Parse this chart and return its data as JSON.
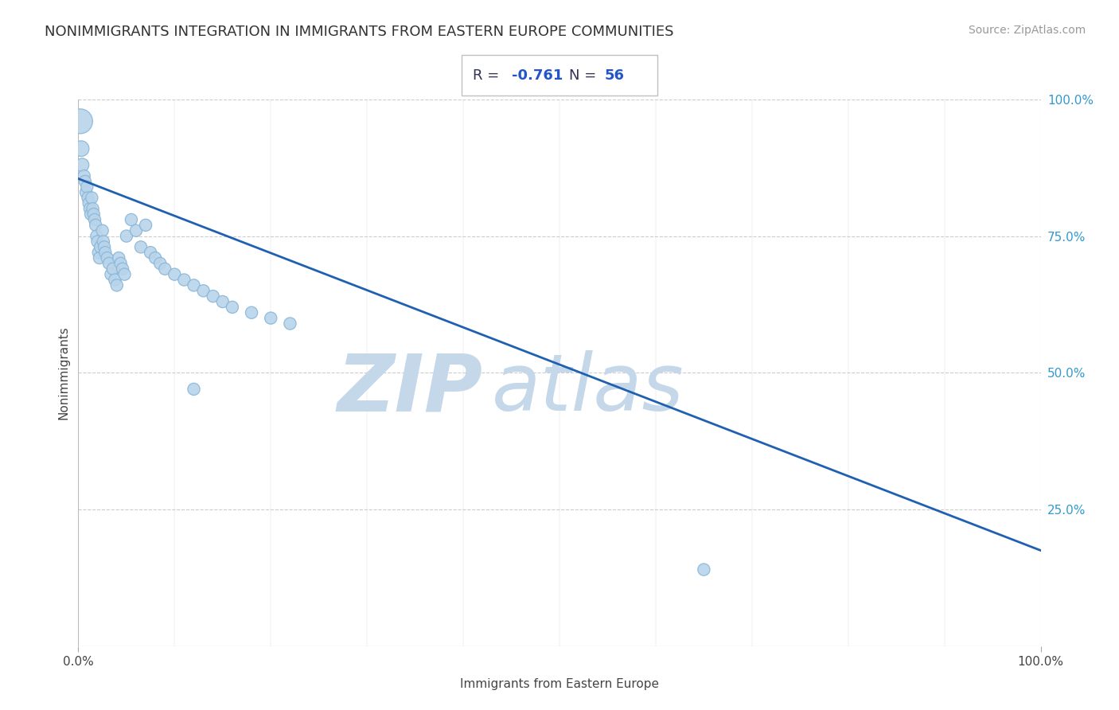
{
  "title": "NONIMMIGRANTS INTEGRATION IN IMMIGRANTS FROM EASTERN EUROPE COMMUNITIES",
  "source": "Source: ZipAtlas.com",
  "xlabel": "Immigrants from Eastern Europe",
  "ylabel": "Nonimmigrants",
  "R": -0.761,
  "N": 56,
  "x_data": [
    0.002,
    0.003,
    0.004,
    0.006,
    0.007,
    0.008,
    0.009,
    0.01,
    0.011,
    0.012,
    0.013,
    0.014,
    0.015,
    0.016,
    0.017,
    0.018,
    0.019,
    0.02,
    0.021,
    0.022,
    0.023,
    0.025,
    0.026,
    0.027,
    0.028,
    0.03,
    0.032,
    0.034,
    0.036,
    0.038,
    0.04,
    0.042,
    0.044,
    0.046,
    0.048,
    0.05,
    0.055,
    0.06,
    0.065,
    0.07,
    0.075,
    0.08,
    0.085,
    0.09,
    0.1,
    0.11,
    0.12,
    0.13,
    0.14,
    0.15,
    0.16,
    0.18,
    0.2,
    0.22,
    0.12,
    0.65
  ],
  "y_data": [
    0.96,
    0.91,
    0.88,
    0.86,
    0.85,
    0.83,
    0.84,
    0.82,
    0.81,
    0.8,
    0.79,
    0.82,
    0.8,
    0.79,
    0.78,
    0.77,
    0.75,
    0.74,
    0.72,
    0.71,
    0.73,
    0.76,
    0.74,
    0.73,
    0.72,
    0.71,
    0.7,
    0.68,
    0.69,
    0.67,
    0.66,
    0.71,
    0.7,
    0.69,
    0.68,
    0.75,
    0.78,
    0.76,
    0.73,
    0.77,
    0.72,
    0.71,
    0.7,
    0.69,
    0.68,
    0.67,
    0.66,
    0.65,
    0.64,
    0.63,
    0.62,
    0.61,
    0.6,
    0.59,
    0.47,
    0.14
  ],
  "sizes": [
    500,
    200,
    150,
    120,
    120,
    120,
    120,
    120,
    120,
    120,
    120,
    120,
    120,
    120,
    120,
    120,
    120,
    120,
    120,
    120,
    120,
    120,
    120,
    120,
    120,
    120,
    120,
    120,
    120,
    120,
    120,
    120,
    120,
    120,
    120,
    120,
    120,
    120,
    120,
    120,
    120,
    120,
    120,
    120,
    120,
    120,
    120,
    120,
    120,
    120,
    120,
    120,
    120,
    120,
    120,
    120
  ],
  "scatter_color": "#b8d4ea",
  "scatter_edge_color": "#89b6d8",
  "line_color": "#2060b0",
  "trend_x": [
    0.0,
    1.0
  ],
  "trend_y_start": 0.855,
  "trend_y_end": 0.175,
  "xlim": [
    0.0,
    1.0
  ],
  "ylim": [
    0.0,
    1.0
  ],
  "yticks_right": [
    0.25,
    0.5,
    0.75,
    1.0
  ],
  "ytick_labels_right": [
    "25.0%",
    "50.0%",
    "75.0%",
    "100.0%"
  ],
  "xtick_labels": [
    "0.0%",
    "100.0%"
  ],
  "xticks": [
    0.0,
    1.0
  ],
  "watermark_zip": "ZIP",
  "watermark_atlas": "atlas",
  "watermark_color_zip": "#c5d8ea",
  "watermark_color_atlas": "#c5d8ea",
  "title_color": "#333333",
  "title_fontsize": 13,
  "source_fontsize": 10,
  "axis_label_fontsize": 11,
  "stats_R_color": "#333355",
  "stats_N_color": "#2255cc",
  "grid_color": "#cccccc",
  "background_color": "#ffffff"
}
